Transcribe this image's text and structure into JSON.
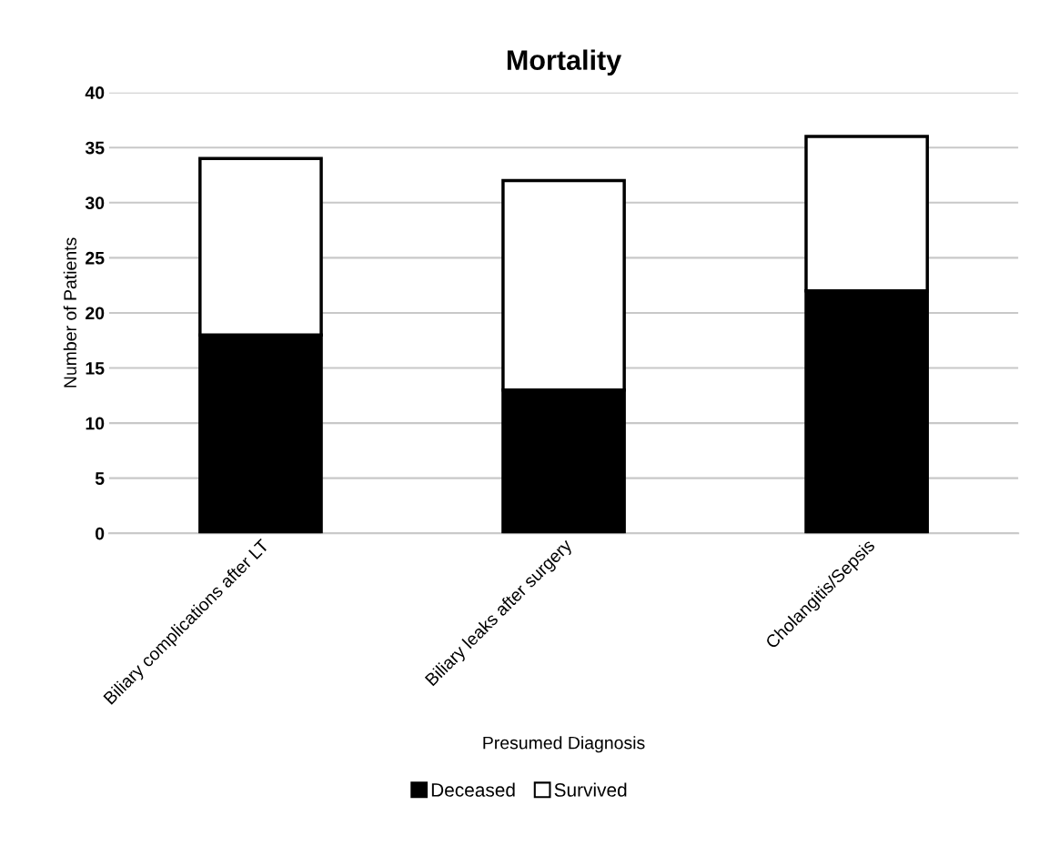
{
  "chart_data": {
    "type": "bar",
    "title": "Mortality",
    "xlabel": "Presumed Diagnosis",
    "ylabel": "Number of Patients",
    "categories": [
      "Biliary complications after LT",
      "Biliary leaks after surgery",
      "Cholangitis/Sepsis"
    ],
    "stacked": true,
    "series": [
      {
        "name": "Deceased",
        "color": "#000000",
        "values": [
          18,
          13,
          22
        ]
      },
      {
        "name": "Survived",
        "color": "#ffffff",
        "values": [
          16,
          19,
          14
        ]
      }
    ],
    "ylim": [
      0,
      40
    ],
    "yticks": [
      0,
      5,
      10,
      15,
      20,
      25,
      30,
      35,
      40
    ],
    "grid": "y",
    "legend": "bottom"
  }
}
